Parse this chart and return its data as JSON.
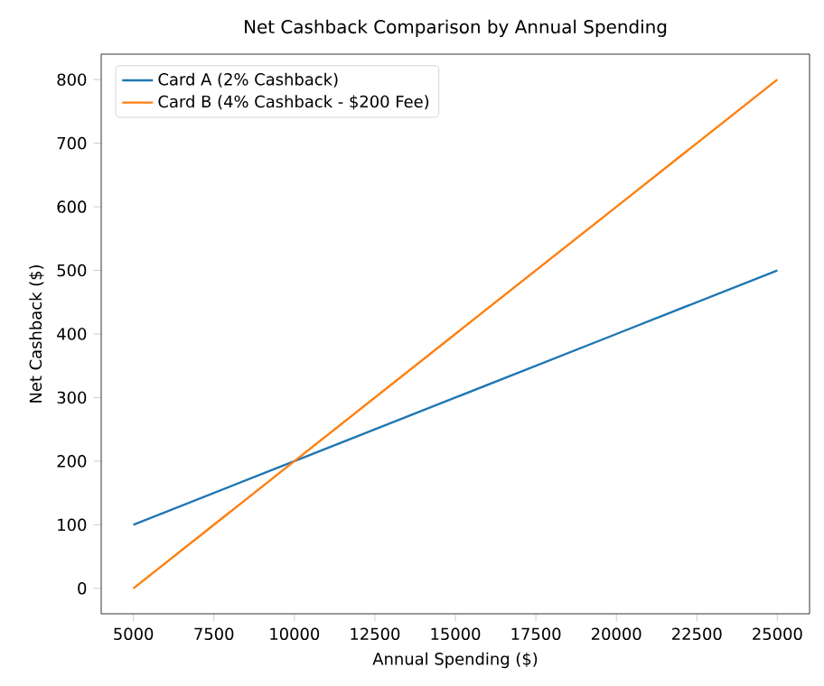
{
  "chart_data": {
    "type": "line",
    "title": "Net Cashback Comparison by Annual Spending",
    "xlabel": "Annual Spending ($)",
    "ylabel": "Net Cashback ($)",
    "x": [
      5000,
      10000,
      15000,
      20000,
      25000
    ],
    "series": [
      {
        "name": "Card A (2% Cashback)",
        "color": "#1f77b4",
        "values": [
          100,
          200,
          300,
          400,
          500
        ]
      },
      {
        "name": "Card B (4% Cashback - $200 Fee)",
        "color": "#ff7f0e",
        "values": [
          0,
          200,
          400,
          600,
          800
        ]
      }
    ],
    "xlim": [
      4000,
      26000
    ],
    "ylim": [
      -40,
      840
    ],
    "xticks": [
      5000,
      7500,
      10000,
      12500,
      15000,
      17500,
      20000,
      22500,
      25000
    ],
    "yticks": [
      0,
      100,
      200,
      300,
      400,
      500,
      600,
      700,
      800
    ],
    "legend": "top left",
    "grid": false,
    "marker": "none",
    "line_style": "solid"
  }
}
